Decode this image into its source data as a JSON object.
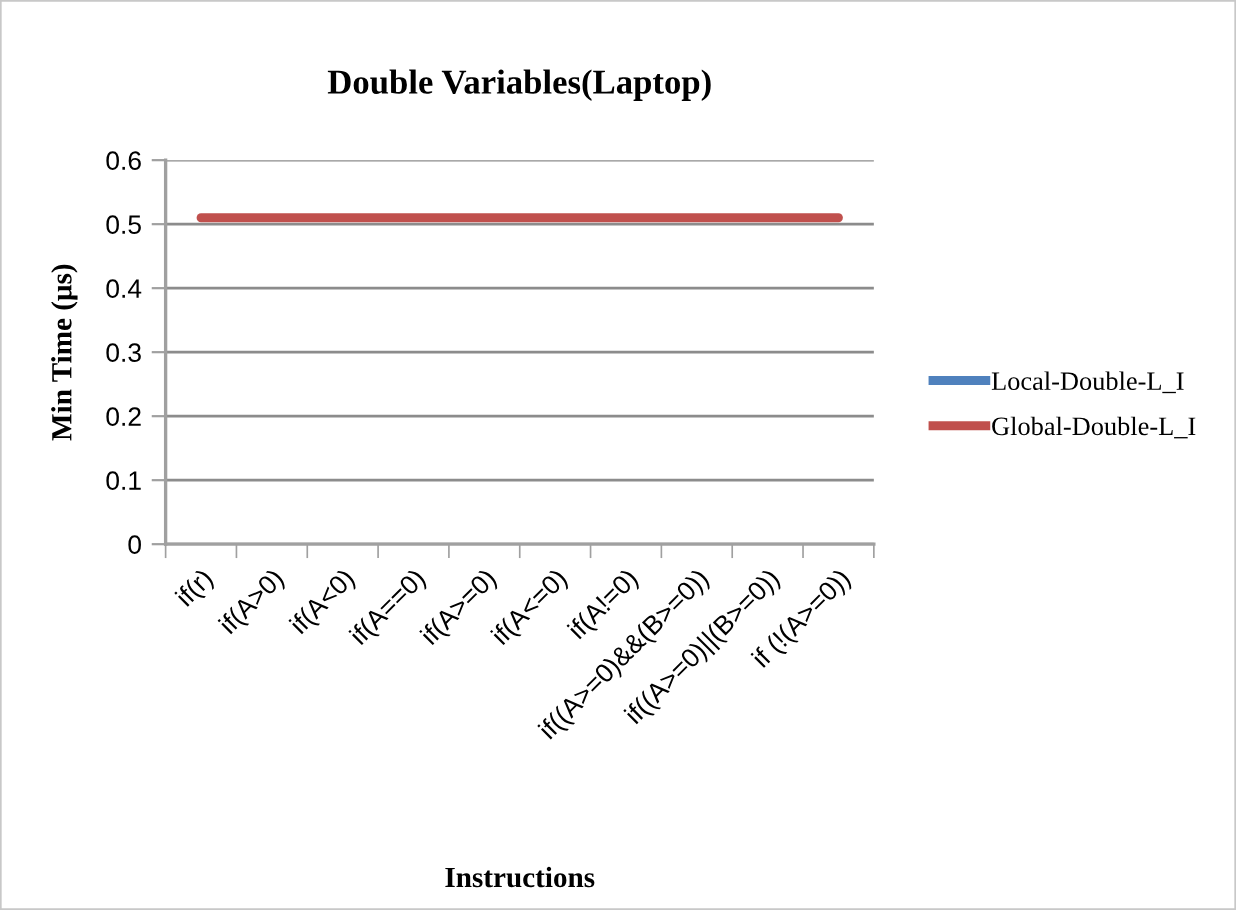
{
  "chart_data": {
    "type": "line",
    "title": "Double Variables(Laptop)",
    "xlabel": "Instructions",
    "ylabel": "Min Time (μs)",
    "categories": [
      "if(r)",
      "if(A>0)",
      "if(A<0)",
      "if(A==0)",
      "if(A>=0)",
      "if(A<=0)",
      "if(A!=0)",
      "if((A>=0)&&(B>=0))",
      "if((A>=0)||(B>=0))",
      "if (!(A>=0))"
    ],
    "series": [
      {
        "name": "Local-Double-L_I",
        "color": "#4f81bd",
        "values": [
          null,
          null,
          null,
          null,
          null,
          null,
          null,
          null,
          null,
          null
        ]
      },
      {
        "name": "Global-Double-L_I",
        "color": "#c0504d",
        "values": [
          0.51,
          0.51,
          0.51,
          0.51,
          0.51,
          0.51,
          0.51,
          0.51,
          0.51,
          0.51
        ]
      }
    ],
    "ylim": [
      0,
      0.6
    ],
    "yticks": [
      0,
      0.1,
      0.2,
      0.3,
      0.4,
      0.5,
      0.6
    ],
    "grid": "y",
    "legend": "right",
    "line_style": "solid"
  }
}
